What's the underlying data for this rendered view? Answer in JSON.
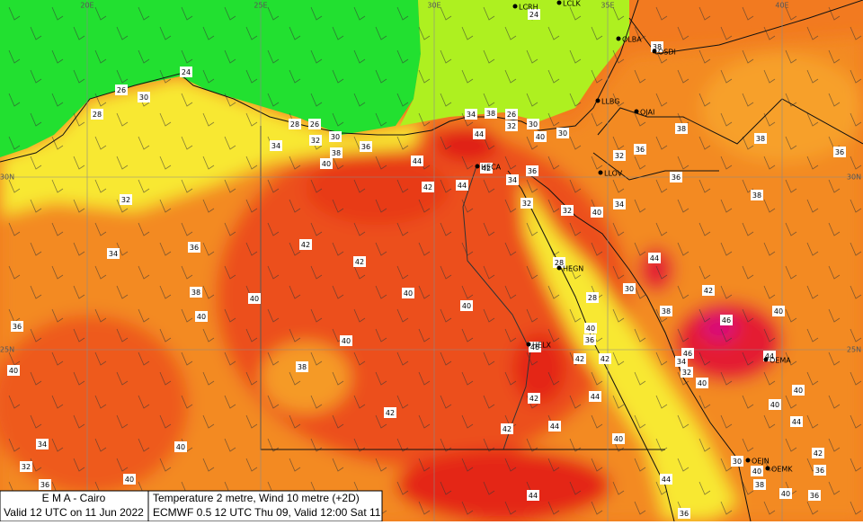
{
  "footer": {
    "org": "E M A  -  Cairo",
    "valid": "Valid 12 UTC on 11 Jun 2022",
    "product": "Temperature  2 metre, Wind  10 metre (+2D)",
    "model": "ECMWF 0.5 12 UTC Thu 09, Valid 12:00 Sat 11"
  },
  "stations": [
    "LCRH",
    "LCLK",
    "OLBA",
    "OSDI",
    "LLBG",
    "OJAI",
    "LLOV",
    "HECA",
    "HEGN",
    "HELX",
    "OEJN",
    "OEMK",
    "OEMA"
  ],
  "grid_labels": [
    "20E",
    "25E",
    "30E",
    "35E",
    "40E",
    "30N",
    "25N",
    "30N",
    "25N"
  ],
  "temperatures": [
    24,
    26,
    30,
    28,
    28,
    26,
    32,
    30,
    34,
    36,
    38,
    40,
    44,
    34,
    38,
    26,
    30,
    32,
    44,
    40,
    30,
    42,
    36,
    34,
    42,
    44,
    32,
    32,
    32,
    40,
    34,
    36,
    34,
    42,
    42,
    28,
    44,
    38,
    28,
    30,
    42,
    40,
    40,
    38,
    40,
    40,
    40,
    36,
    46,
    40,
    36,
    40,
    46,
    46,
    44,
    40,
    38,
    42,
    42,
    34,
    32,
    40,
    40,
    44,
    42,
    42,
    40,
    44,
    42,
    40,
    44,
    34,
    40,
    42,
    32,
    30,
    40,
    38,
    36,
    40,
    36,
    40,
    36,
    44,
    44,
    36,
    24,
    38,
    36,
    32,
    36,
    38,
    38,
    36,
    38
  ]
}
